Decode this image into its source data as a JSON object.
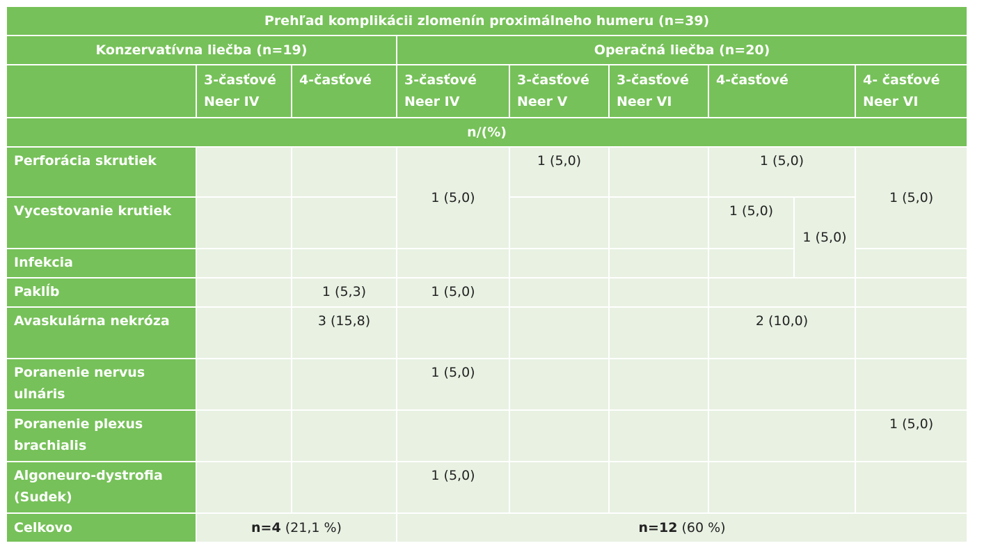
{
  "table": {
    "title": "Prehľad komplikácii zlomenín proximálneho humeru (n=39)",
    "groups": {
      "conservative": "Konzervatívna liečba (n=19)",
      "operative": "Operačná liečba (n=20)"
    },
    "subheaders": {
      "cons_3part_neer4": "3-časťové Neer IV",
      "cons_4part": "4-časťové",
      "op_3part_neer4": "3-časťové Neer IV",
      "op_3part_neer5": "3-časťové Neer V",
      "op_3part_neer6": "3-časťové Neer VI",
      "op_4part": "4-časťové",
      "op_4part_neer6": "4- časťové Neer VI"
    },
    "unit_row": "n/(%)",
    "rows": {
      "perforacia": {
        "label": "Perforácia skrutiek",
        "op_3part_neer5": "1 (5,0)",
        "op_4part": "1 (5,0)"
      },
      "vycestovanie": {
        "label": "Vycestovanie krutiek",
        "op_4part_a": "1 (5,0)",
        "op_4part_b": "1 (5,0)"
      },
      "infekcia": {
        "label": "Infekcia"
      },
      "paklb": {
        "label": "Paklĺb",
        "cons_4part": "1 (5,3)",
        "op_3part_neer4": "1 (5,0)"
      },
      "avaskularna": {
        "label": "Avaskulárna nekróza",
        "cons_4part": "3 (15,8)",
        "op_4part": "2 (10,0)"
      },
      "ulnaris": {
        "label": "Poranenie nervus ulnáris",
        "op_3part_neer4": "1 (5,0)"
      },
      "plexus": {
        "label": "Poranenie plexus brachialis",
        "op_4part_neer6": "1 (5,0)"
      },
      "algoneuro": {
        "label": "Algoneuro-dystrofia (Sudek)",
        "op_3part_neer4": "1 (5,0)"
      }
    },
    "merged": {
      "op_3part_neer4_rows_1_3": "1 (5,0)",
      "op_4part_neer6_rows_1_3": "1 (5,0)"
    },
    "totals": {
      "label": "Celkovo",
      "conservative_bold": "n=4",
      "conservative_rest": "(21,1 %)",
      "operative_bold": "n=12",
      "operative_rest": "(60 %)"
    }
  }
}
